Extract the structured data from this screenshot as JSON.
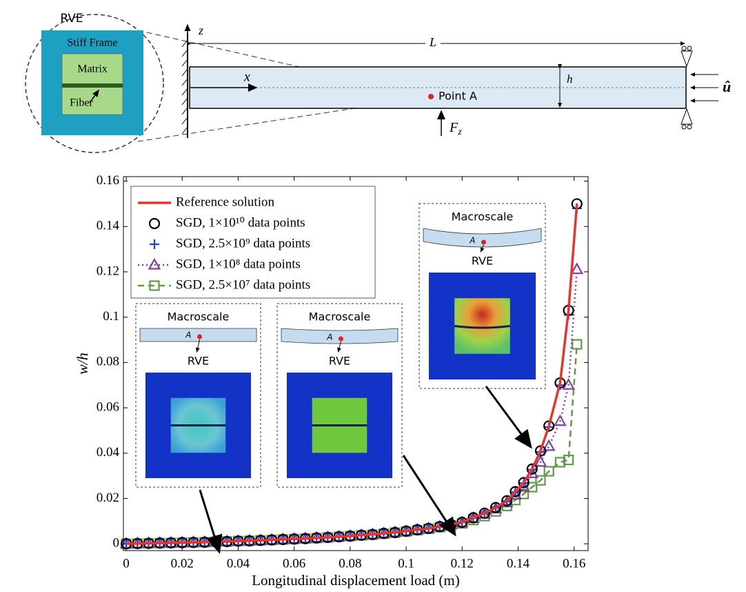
{
  "diagram": {
    "rve_title": "RVE",
    "stiff_frame": "Stiff Frame",
    "matrix": "Matrix",
    "fiber": "Fiber",
    "z_label": "z",
    "length_label": "L",
    "x_label": "x",
    "height_label": "h",
    "point_label": "Point A",
    "force_label": "F",
    "force_sub": "z",
    "load_label": "û"
  },
  "chart_data": {
    "type": "line",
    "xlabel": "Longitudinal displacement load (m)",
    "ylabel": "w/h",
    "xlim": [
      -0.001,
      0.165
    ],
    "ylim": [
      -0.003,
      0.162
    ],
    "xticks": [
      0,
      0.02,
      0.04,
      0.06,
      0.08,
      0.1,
      0.12,
      0.14,
      0.16
    ],
    "yticks": [
      0,
      0.02,
      0.04,
      0.06,
      0.08,
      0.1,
      0.12,
      0.14,
      0.16
    ],
    "legend": "upper left",
    "x": [
      0,
      0.004,
      0.008,
      0.012,
      0.016,
      0.02,
      0.024,
      0.028,
      0.032,
      0.036,
      0.04,
      0.044,
      0.048,
      0.052,
      0.056,
      0.06,
      0.064,
      0.068,
      0.072,
      0.076,
      0.08,
      0.084,
      0.088,
      0.092,
      0.096,
      0.1,
      0.104,
      0.108,
      0.112,
      0.116,
      0.12,
      0.124,
      0.128,
      0.132,
      0.136,
      0.139,
      0.142,
      0.145,
      0.148,
      0.151,
      0.155,
      0.158,
      0.161
    ],
    "series": [
      {
        "name": "Reference solution",
        "color": "#e8342a",
        "line_style": "solid",
        "marker": "none",
        "values": [
          0,
          0.0001,
          0.0002,
          0.0003,
          0.0004,
          0.0005,
          0.0006,
          0.0007,
          0.0009,
          0.001,
          0.0012,
          0.0013,
          0.0015,
          0.0017,
          0.0019,
          0.0021,
          0.0023,
          0.0026,
          0.0028,
          0.0031,
          0.0034,
          0.0038,
          0.0041,
          0.0046,
          0.005,
          0.0056,
          0.0062,
          0.0068,
          0.0076,
          0.0085,
          0.0095,
          0.0115,
          0.0135,
          0.016,
          0.019,
          0.023,
          0.027,
          0.033,
          0.041,
          0.052,
          0.071,
          0.103,
          0.15
        ]
      },
      {
        "name": "SGD, 1×10¹⁰ data points",
        "color": "#000000",
        "line_style": "none",
        "marker": "circle",
        "values": [
          0,
          0.0001,
          0.0002,
          0.0003,
          0.0004,
          0.0005,
          0.0006,
          0.0007,
          0.0009,
          0.001,
          0.0012,
          0.0013,
          0.0015,
          0.0017,
          0.0019,
          0.0021,
          0.0023,
          0.0026,
          0.0028,
          0.0031,
          0.0034,
          0.0038,
          0.0041,
          0.0046,
          0.005,
          0.0056,
          0.0062,
          0.0068,
          0.0076,
          0.0085,
          0.0095,
          0.0115,
          0.0135,
          0.016,
          0.019,
          0.023,
          0.027,
          0.033,
          0.041,
          0.052,
          0.071,
          0.103,
          0.15
        ]
      },
      {
        "name": "SGD, 2.5×10⁹ data points",
        "color": "#1f3fd8",
        "line_style": "none",
        "marker": "plus",
        "values": [
          0,
          0.0001,
          0.0002,
          0.0003,
          0.0004,
          0.0005,
          0.0006,
          0.0007,
          0.0009,
          0.001,
          0.0012,
          0.0013,
          0.0015,
          0.0017,
          0.0019,
          0.0021,
          0.0023,
          0.0026,
          0.0028,
          0.0031,
          0.0034,
          0.0038,
          0.0041,
          0.0046,
          0.005,
          0.0056,
          0.0062,
          0.0068,
          0.0076,
          0.0085,
          0.0095,
          0.0114,
          0.0134,
          0.0159,
          0.0189,
          0.0228,
          0.0268,
          0.0327,
          0.0405,
          0.0515,
          0.07,
          0.101,
          0.148
        ]
      },
      {
        "name": "SGD, 1×10⁸ data points",
        "color": "#7e3fa0",
        "line_style": "dotted",
        "marker": "triangle",
        "values": [
          0,
          0.0001,
          0.0002,
          0.0003,
          0.0004,
          0.0005,
          0.0006,
          0.0007,
          0.0009,
          0.001,
          0.0012,
          0.0013,
          0.0015,
          0.0017,
          0.0019,
          0.0021,
          0.0023,
          0.0026,
          0.0028,
          0.0031,
          0.0034,
          0.0037,
          0.0041,
          0.0045,
          0.005,
          0.0055,
          0.0061,
          0.0067,
          0.0075,
          0.0084,
          0.0093,
          0.0112,
          0.0131,
          0.0154,
          0.0181,
          0.0215,
          0.025,
          0.031,
          0.036,
          0.043,
          0.054,
          0.07,
          0.121
        ]
      },
      {
        "name": "SGD, 2.5×10⁷ data points",
        "color": "#5f9a47",
        "line_style": "dashed",
        "marker": "square",
        "values": [
          0,
          0.0001,
          0.0002,
          0.0003,
          0.0004,
          0.0005,
          0.0006,
          0.0007,
          0.0009,
          0.001,
          0.0012,
          0.0013,
          0.0015,
          0.0017,
          0.0019,
          0.0021,
          0.0023,
          0.0025,
          0.0028,
          0.0031,
          0.0034,
          0.0037,
          0.004,
          0.0044,
          0.0049,
          0.0054,
          0.006,
          0.0066,
          0.0073,
          0.0081,
          0.009,
          0.0105,
          0.0122,
          0.0143,
          0.0167,
          0.0193,
          0.022,
          0.025,
          0.028,
          0.032,
          0.036,
          0.037,
          0.088
        ]
      }
    ],
    "insets": [
      {
        "title": "Macroscale",
        "point": "A",
        "rve": "RVE"
      },
      {
        "title": "Macroscale",
        "point": "A",
        "rve": "RVE"
      },
      {
        "title": "Macroscale",
        "point": "A",
        "rve": "RVE"
      }
    ]
  }
}
